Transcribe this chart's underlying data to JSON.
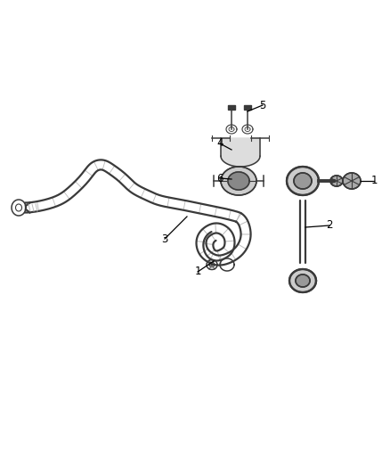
{
  "background_color": "#ffffff",
  "line_color": "#3a3a3a",
  "figsize": [
    4.38,
    5.33
  ],
  "dpi": 100,
  "lw_bar": 2.8,
  "lw_tube": 1.6,
  "lw_thin": 1.1,
  "lw_label": 0.8,
  "gray_fill": "#888888",
  "gray_mid": "#666666",
  "gray_light": "#bbbbbb",
  "gray_dark": "#444444"
}
